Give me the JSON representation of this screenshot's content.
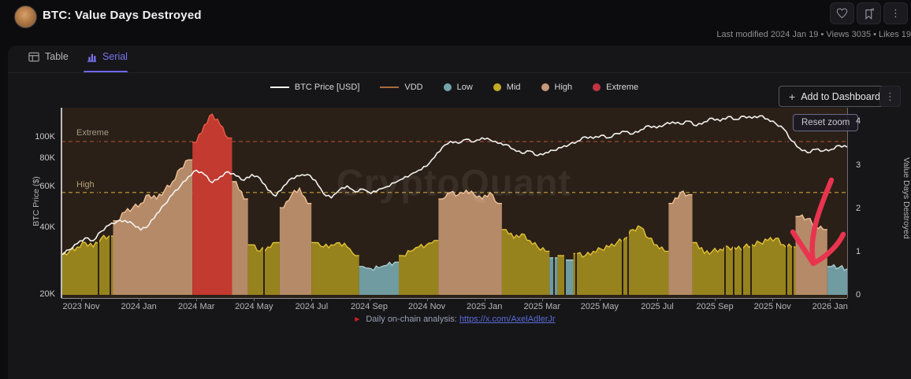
{
  "header": {
    "title": "BTC: Value Days Destroyed",
    "meta": "Last modified 2024 Jan 19 • Views 3035 • Likes 19"
  },
  "tabs": {
    "table": "Table",
    "serial": "Serial"
  },
  "toolbar": {
    "add_to_dashboard": "Add to Dashboard",
    "plus": "+",
    "kebab": "⋮"
  },
  "chart_controls": {
    "reset_zoom": "Reset zoom"
  },
  "watermark": "CryptoQuant",
  "footer": {
    "marker": "►",
    "prefix": "Daily on-chain analysis:",
    "link": "https://x.com/AxelAdlerJr"
  },
  "legend": [
    {
      "label": "BTC Price [USD]",
      "type": "line",
      "color": "#f3f3f1"
    },
    {
      "label": "VDD",
      "type": "line",
      "color": "#a96a3a"
    },
    {
      "label": "Low",
      "type": "dot",
      "color": "#74a4ab"
    },
    {
      "label": "Mid",
      "type": "dot",
      "color": "#c3aa25"
    },
    {
      "label": "High",
      "type": "dot",
      "color": "#c59878"
    },
    {
      "label": "Extreme",
      "type": "dot",
      "color": "#c13543"
    }
  ],
  "chart_data": {
    "type": "mixed",
    "x_axis": {
      "tick_labels": [
        "2023 Nov",
        "2024 Jan",
        "2024 Mar",
        "2024 May",
        "2024 Jul",
        "2024 Sep",
        "2024 Nov",
        "2025 Jan",
        "2025 Mar",
        "2025 May",
        "2025 Jul",
        "2025 Sep",
        "2025 Nov",
        "2026 Jan"
      ]
    },
    "y_left": {
      "label": "BTC Price ($)",
      "scale": "log",
      "ticks": [
        "100K",
        "80K",
        "60K",
        "40K",
        "20K"
      ]
    },
    "y_right": {
      "label": "Value Days Destroyed",
      "scale": "linear",
      "ticks": [
        "4",
        "3",
        "2",
        "1",
        "0"
      ]
    },
    "thresholds": [
      {
        "label": "Extreme",
        "vdd": 3.52,
        "color": "#a04535"
      },
      {
        "label": "High",
        "vdd": 2.35,
        "color": "#c8a23c"
      }
    ],
    "series": [
      {
        "name": "BTC Price [USD]",
        "type": "line",
        "axis": "left",
        "unit": "USD thousands",
        "values": [
          30,
          31.5,
          33.5,
          35.5,
          34.5,
          38,
          40.5,
          42,
          42.5,
          41,
          38.5,
          40.5,
          45.5,
          50,
          55.5,
          60.5,
          66.5,
          71,
          68,
          62.5,
          66.5,
          70,
          67,
          64,
          68,
          65.5,
          58,
          54.5,
          60.5,
          65.5,
          67,
          68,
          64,
          56,
          53.5,
          58,
          60.5,
          57,
          58.5,
          56,
          58.5,
          60,
          62.5,
          65,
          68,
          71,
          74,
          81,
          90,
          95.5,
          93.5,
          97.5,
          95,
          99,
          97,
          93.5,
          92.5,
          88,
          84.5,
          86.5,
          82.5,
          85,
          87,
          89.5,
          92.5,
          95.5,
          100,
          98.5,
          101.5,
          99,
          103.5,
          105.5,
          103,
          107.5,
          112,
          109.5,
          113.5,
          116.5,
          114,
          117.5,
          112,
          116.5,
          121,
          117.5,
          123,
          119.5,
          123.5,
          121,
          124,
          120,
          114.5,
          108.5,
          96,
          89,
          85,
          88,
          86.5,
          88,
          91.5,
          90
        ]
      },
      {
        "name": "VDD",
        "type": "area",
        "axis": "right",
        "unit": "value days destroyed",
        "values": [
          0.9,
          1.0,
          1.1,
          1.2,
          1.1,
          1.3,
          1.35,
          1.7,
          1.9,
          2.0,
          2.1,
          2.3,
          2.2,
          2.4,
          2.6,
          2.9,
          3.1,
          3.5,
          3.9,
          4.15,
          3.9,
          3.6,
          2.6,
          2.2,
          1.15,
          1.0,
          1.1,
          1.2,
          2.0,
          2.3,
          2.45,
          2.1,
          1.2,
          1.1,
          1.15,
          1.2,
          1.1,
          0.9,
          0.65,
          0.6,
          0.62,
          0.68,
          0.75,
          0.9,
          1.0,
          1.1,
          1.15,
          1.25,
          2.2,
          2.35,
          2.3,
          2.4,
          2.3,
          2.2,
          2.35,
          2.1,
          1.5,
          1.3,
          1.4,
          1.25,
          1.1,
          1.0,
          0.85,
          0.9,
          0.8,
          0.95,
          0.9,
          1.0,
          1.05,
          1.1,
          1.2,
          1.3,
          1.5,
          1.55,
          1.3,
          1.15,
          1.0,
          2.1,
          2.35,
          2.3,
          1.2,
          0.95,
          1.0,
          1.05,
          1.1,
          1.05,
          1.1,
          1.15,
          1.2,
          1.25,
          1.3,
          1.15,
          1.1,
          1.8,
          1.75,
          1.6,
          1.5,
          0.65,
          0.63,
          0.6
        ],
        "regimes": [
          "M",
          "M",
          "M",
          "M",
          "M",
          "M",
          "M",
          "H",
          "H",
          "H",
          "H",
          "H",
          "H",
          "H",
          "H",
          "H",
          "H",
          "E",
          "E",
          "E",
          "E",
          "E",
          "H",
          "H",
          "M",
          "M",
          "M",
          "M",
          "H",
          "H",
          "H",
          "H",
          "M",
          "M",
          "M",
          "M",
          "M",
          "M",
          "L",
          "L",
          "L",
          "L",
          "L",
          "M",
          "M",
          "M",
          "M",
          "M",
          "H",
          "H",
          "H",
          "H",
          "H",
          "H",
          "H",
          "H",
          "M",
          "M",
          "M",
          "M",
          "M",
          "M",
          "L",
          "M",
          "L",
          "M",
          "M",
          "M",
          "M",
          "M",
          "M",
          "M",
          "M",
          "M",
          "M",
          "M",
          "M",
          "H",
          "H",
          "H",
          "M",
          "M",
          "M",
          "M",
          "M",
          "M",
          "M",
          "M",
          "M",
          "M",
          "M",
          "M",
          "M",
          "H",
          "H",
          "H",
          "H",
          "L",
          "L",
          "L"
        ]
      }
    ],
    "regime_colors": {
      "L": {
        "label": "Low",
        "fill": "#6f9ba1",
        "edge": "#a6ccd0"
      },
      "M": {
        "label": "Mid",
        "fill": "#97831d",
        "edge": "#e2c136"
      },
      "H": {
        "label": "High",
        "fill": "#b58a68",
        "edge": "#eec197"
      },
      "E": {
        "label": "Extreme",
        "fill": "#c23a30",
        "edge": "#ef5a45"
      }
    },
    "annotation_arrow": {
      "color": "#e8344f",
      "meaning": "hand-drawn arrow pointing at recent VDD drop"
    }
  }
}
